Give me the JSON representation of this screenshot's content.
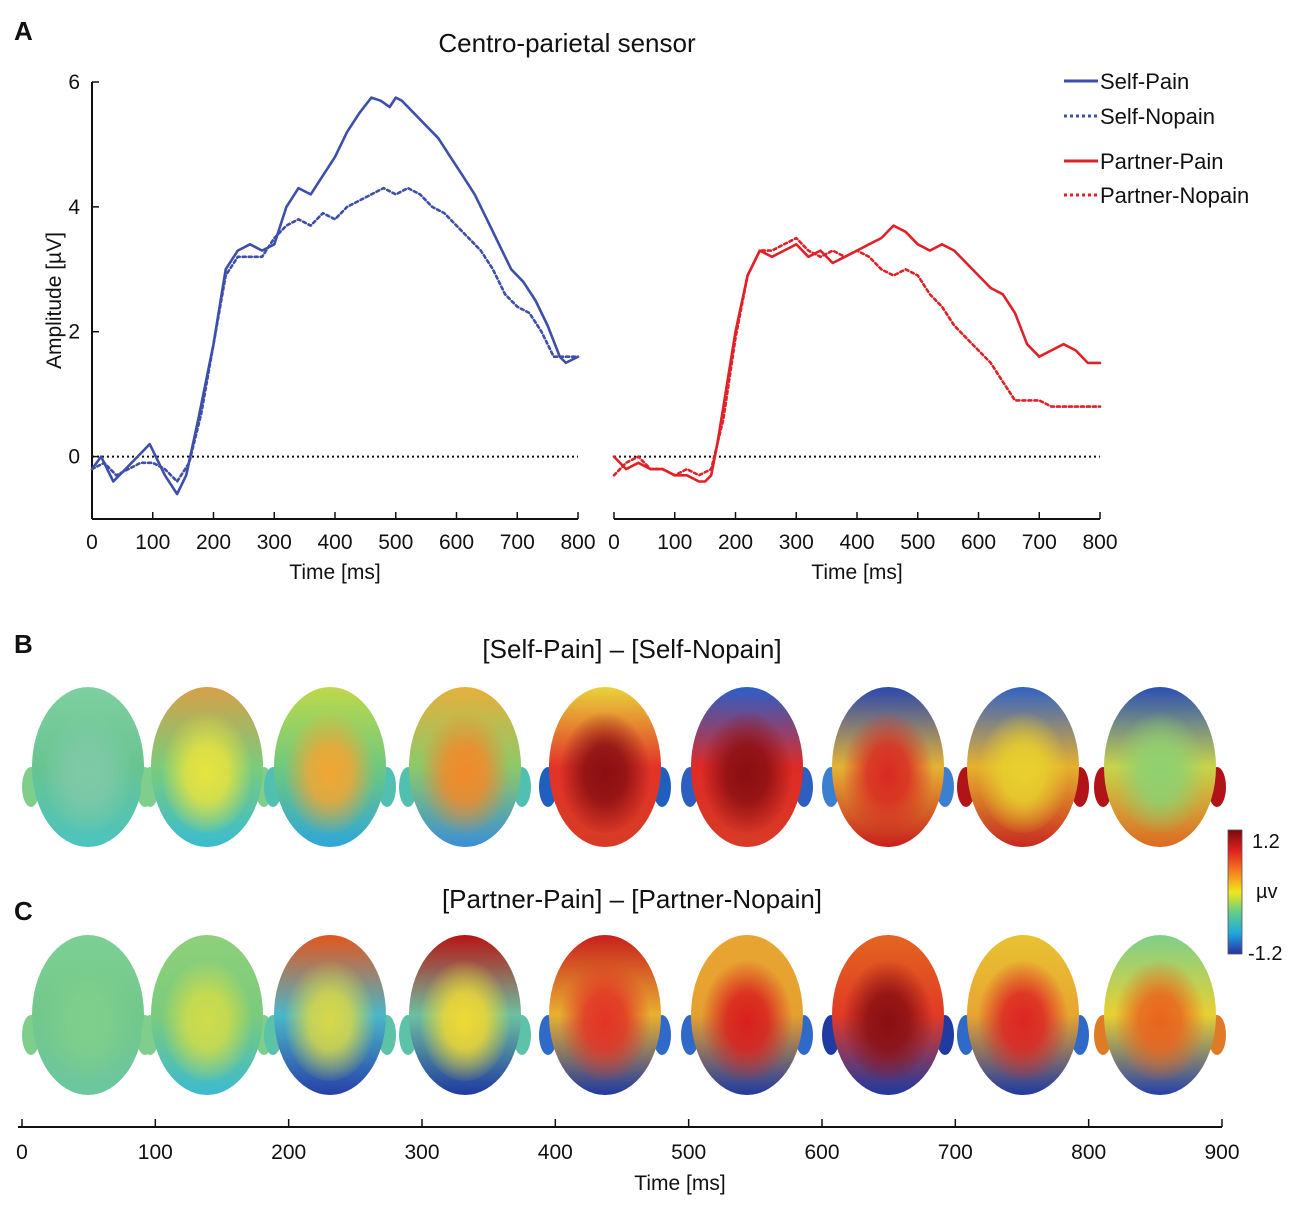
{
  "panels": {
    "a_label": "A",
    "b_label": "B",
    "c_label": "C",
    "b_title": "[Self-Pain] – [Self-Nopain]",
    "c_title": "[Partner-Pain] – [Partner-Nopain]"
  },
  "colorbar": {
    "max_label": "1.2",
    "unit_label": "µv",
    "min_label": "-1.2",
    "colors": [
      "#2a2fa0",
      "#1ea8e0",
      "#5fcf8a",
      "#f2e61a",
      "#f57d1f",
      "#e02020",
      "#7a0a0a"
    ]
  },
  "topo_axis": {
    "label": "Time [ms]",
    "ticks": [
      "0",
      "100",
      "200",
      "300",
      "400",
      "500",
      "600",
      "700",
      "800",
      "900"
    ]
  },
  "chart_data": [
    {
      "type": "line",
      "title": "Centro-parietal sensor",
      "xlabel": "Time [ms]",
      "ylabel": "Amplitude [µV]",
      "xlim": [
        0,
        800
      ],
      "ylim": [
        -1,
        6
      ],
      "x_ticks": [
        "0",
        "100",
        "200",
        "300",
        "400",
        "500",
        "600",
        "700",
        "800"
      ],
      "y_ticks": [
        "0",
        "2",
        "4",
        "6"
      ],
      "series": [
        {
          "name": "Self-Pain",
          "color": "#3d4fa8",
          "style": "solid",
          "x": [
            0,
            15,
            35,
            55,
            75,
            95,
            105,
            120,
            140,
            155,
            175,
            200,
            220,
            240,
            260,
            280,
            300,
            320,
            340,
            360,
            380,
            400,
            420,
            440,
            460,
            475,
            490,
            500,
            510,
            530,
            550,
            570,
            590,
            610,
            630,
            650,
            670,
            690,
            710,
            730,
            750,
            770,
            780,
            800
          ],
          "y": [
            -0.2,
            0.0,
            -0.4,
            -0.2,
            0.0,
            0.2,
            0.0,
            -0.3,
            -0.6,
            -0.3,
            0.6,
            1.8,
            3.0,
            3.3,
            3.4,
            3.3,
            3.4,
            4.0,
            4.3,
            4.2,
            4.5,
            4.8,
            5.2,
            5.5,
            5.75,
            5.7,
            5.6,
            5.75,
            5.7,
            5.5,
            5.3,
            5.1,
            4.8,
            4.5,
            4.2,
            3.8,
            3.4,
            3.0,
            2.8,
            2.5,
            2.1,
            1.6,
            1.5,
            1.6
          ]
        },
        {
          "name": "Self-Nopain",
          "color": "#3d4fa8",
          "style": "dotted",
          "x": [
            0,
            20,
            40,
            60,
            80,
            100,
            120,
            140,
            160,
            180,
            200,
            220,
            240,
            260,
            280,
            300,
            320,
            340,
            360,
            380,
            400,
            420,
            440,
            460,
            480,
            500,
            520,
            540,
            560,
            580,
            600,
            620,
            640,
            660,
            680,
            700,
            720,
            740,
            760,
            780,
            800
          ],
          "y": [
            -0.2,
            -0.1,
            -0.3,
            -0.2,
            -0.1,
            -0.1,
            -0.2,
            -0.4,
            -0.1,
            0.7,
            1.8,
            2.9,
            3.2,
            3.2,
            3.2,
            3.5,
            3.7,
            3.8,
            3.7,
            3.9,
            3.8,
            4.0,
            4.1,
            4.2,
            4.3,
            4.2,
            4.3,
            4.2,
            4.0,
            3.9,
            3.7,
            3.5,
            3.3,
            3.0,
            2.6,
            2.4,
            2.3,
            2.0,
            1.6,
            1.6,
            1.6
          ]
        }
      ]
    },
    {
      "type": "line",
      "xlabel": "Time [ms]",
      "xlim": [
        0,
        800
      ],
      "ylim": [
        -1,
        6
      ],
      "x_ticks": [
        "0",
        "100",
        "200",
        "300",
        "400",
        "500",
        "600",
        "700",
        "800"
      ],
      "series": [
        {
          "name": "Partner-Pain",
          "color": "#e02127",
          "style": "solid",
          "x": [
            0,
            20,
            40,
            60,
            80,
            100,
            120,
            140,
            150,
            160,
            170,
            180,
            200,
            220,
            240,
            260,
            280,
            300,
            320,
            340,
            360,
            380,
            400,
            420,
            440,
            460,
            480,
            500,
            520,
            540,
            560,
            580,
            600,
            620,
            640,
            660,
            680,
            700,
            720,
            740,
            760,
            780,
            800
          ],
          "y": [
            0.0,
            -0.2,
            -0.1,
            -0.2,
            -0.2,
            -0.3,
            -0.3,
            -0.4,
            -0.4,
            -0.3,
            0.2,
            0.8,
            2.0,
            2.9,
            3.3,
            3.2,
            3.3,
            3.4,
            3.2,
            3.3,
            3.1,
            3.2,
            3.3,
            3.4,
            3.5,
            3.7,
            3.6,
            3.4,
            3.3,
            3.4,
            3.3,
            3.1,
            2.9,
            2.7,
            2.6,
            2.3,
            1.8,
            1.6,
            1.7,
            1.8,
            1.7,
            1.5,
            1.5
          ]
        },
        {
          "name": "Partner-Nopain",
          "color": "#e02127",
          "style": "dotted",
          "x": [
            0,
            20,
            40,
            60,
            80,
            100,
            120,
            140,
            160,
            180,
            200,
            220,
            240,
            260,
            280,
            300,
            320,
            340,
            360,
            380,
            400,
            420,
            440,
            460,
            480,
            500,
            520,
            540,
            560,
            580,
            600,
            620,
            640,
            660,
            680,
            700,
            720,
            740,
            760,
            780,
            800
          ],
          "y": [
            -0.3,
            -0.1,
            0.0,
            -0.2,
            -0.2,
            -0.3,
            -0.2,
            -0.3,
            -0.2,
            0.6,
            1.9,
            2.9,
            3.3,
            3.3,
            3.4,
            3.5,
            3.3,
            3.2,
            3.3,
            3.2,
            3.3,
            3.2,
            3.0,
            2.9,
            3.0,
            2.9,
            2.6,
            2.4,
            2.1,
            1.9,
            1.7,
            1.5,
            1.2,
            0.9,
            0.9,
            0.9,
            0.8,
            0.8,
            0.8,
            0.8,
            0.8
          ]
        }
      ]
    }
  ],
  "topomaps": {
    "b": [
      {
        "center": "#7fc9a7",
        "front": "#7fcfa0",
        "back": "#4cc4c0",
        "rim": "#68c490",
        "ears": "#7fce8c"
      },
      {
        "center": "#e7e33f",
        "front": "#d6a048",
        "back": "#39bcd0",
        "rim": "#7acb7c",
        "ears": "#7fce8c"
      },
      {
        "center": "#f2a633",
        "front": "#bfd84a",
        "back": "#2ea6da",
        "rim": "#6ec97e",
        "ears": "#52c0b0"
      },
      {
        "center": "#f2892a",
        "front": "#e6b03b",
        "back": "#3b8fd5",
        "rim": "#8cc96a",
        "ears": "#52c0b0"
      },
      {
        "center": "#8a0f12",
        "front": "#e8d33a",
        "back": "#d83b26",
        "rim": "#e23328",
        "ears": "#1f5fbf"
      },
      {
        "center": "#8a0f12",
        "front": "#2b5fc9",
        "back": "#d83b26",
        "rim": "#e02a25",
        "ears": "#2d5fc0"
      },
      {
        "center": "#d92a23",
        "front": "#2b49b0",
        "back": "#c81f1c",
        "rim": "#e4b334",
        "ears": "#3b7fd0"
      },
      {
        "center": "#e8d02e",
        "front": "#3262c4",
        "back": "#c62a20",
        "rim": "#e6b02e",
        "ears": "#b01418"
      },
      {
        "center": "#8fd070",
        "front": "#2b4fb5",
        "back": "#dd6a22",
        "rim": "#c8d44a",
        "ears": "#b01418"
      }
    ],
    "c": [
      {
        "center": "#7fce8c",
        "front": "#7ccf93",
        "back": "#6cc7a0",
        "rim": "#72c88a",
        "ears": "#7fce8c"
      },
      {
        "center": "#cfdc4a",
        "front": "#8fd07a",
        "back": "#3cbad0",
        "rim": "#7acb7c",
        "ears": "#7fce8c"
      },
      {
        "center": "#d8d848",
        "front": "#e2561f",
        "back": "#2740a8",
        "rim": "#4ab7c8",
        "ears": "#5cc3a8"
      },
      {
        "center": "#f0d832",
        "front": "#b81515",
        "back": "#1f3aa0",
        "rim": "#6cc0a0",
        "ears": "#5cc3a8"
      },
      {
        "center": "#e23326",
        "front": "#c81f1c",
        "back": "#1f3aa0",
        "rim": "#e8b030",
        "ears": "#2f6ac8"
      },
      {
        "center": "#d91f1e",
        "front": "#e8a531",
        "back": "#1f3aa0",
        "rim": "#e6a030",
        "ears": "#2f6ac8"
      },
      {
        "center": "#8a0f12",
        "front": "#e2661f",
        "back": "#1f3aa0",
        "rim": "#e23a26",
        "ears": "#1f3aa0"
      },
      {
        "center": "#dd2523",
        "front": "#e8c232",
        "back": "#1f3aa0",
        "rim": "#e8a531",
        "ears": "#2f6ac8"
      },
      {
        "center": "#e8641f",
        "front": "#7fcf8a",
        "back": "#2740a8",
        "rim": "#e8d032",
        "ears": "#e07b25"
      }
    ]
  }
}
